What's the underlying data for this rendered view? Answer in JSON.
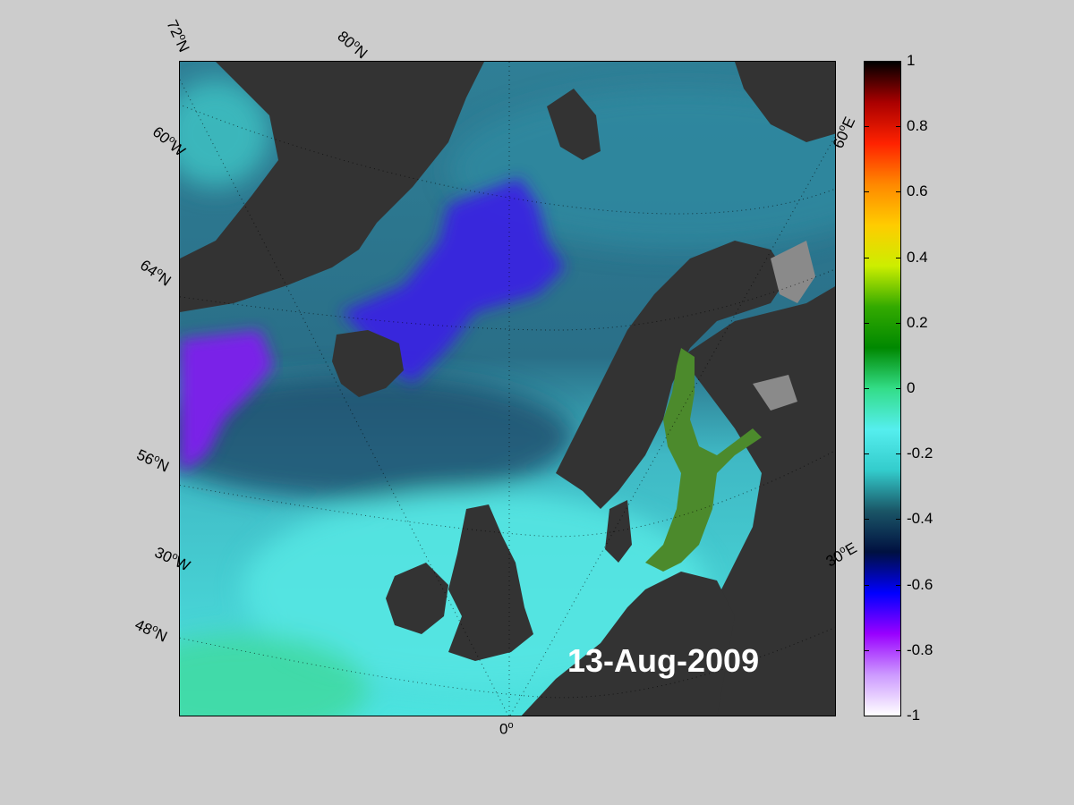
{
  "map": {
    "date_label": "13-Aug-2009",
    "lat_labels": [
      "72°N",
      "80°N",
      "64°N",
      "56°N",
      "48°N"
    ],
    "lon_labels": [
      "60°W",
      "30°W",
      "0°",
      "30°E",
      "60°E"
    ],
    "colors": {
      "land": "#333333",
      "land_gray": "#8a8a8a",
      "ocean_cyan": "#4de4e0",
      "ocean_teal": "#2a8f9a",
      "ocean_dark": "#1f4f6e",
      "blue_anomaly": "#3a24e0",
      "purple_anomaly": "#7a20e8",
      "baltic_green": "#4c8a2c",
      "seafoam": "#3fd9a0"
    }
  },
  "colorbar": {
    "min": -1,
    "max": 1,
    "ticks": [
      "1",
      "0.8",
      "0.6",
      "0.4",
      "0.2",
      "0",
      "-0.2",
      "-0.4",
      "-0.6",
      "-0.8",
      "-1"
    ],
    "stops": [
      "#ffffff",
      "#cc99ff",
      "#9900ff",
      "#0000ff",
      "#001040",
      "#1a5566",
      "#33cccc",
      "#55eeee",
      "#33dd88",
      "#008800",
      "#33aa00",
      "#ccee00",
      "#ffcc00",
      "#ff8800",
      "#ff2200",
      "#aa0000",
      "#000000"
    ]
  }
}
